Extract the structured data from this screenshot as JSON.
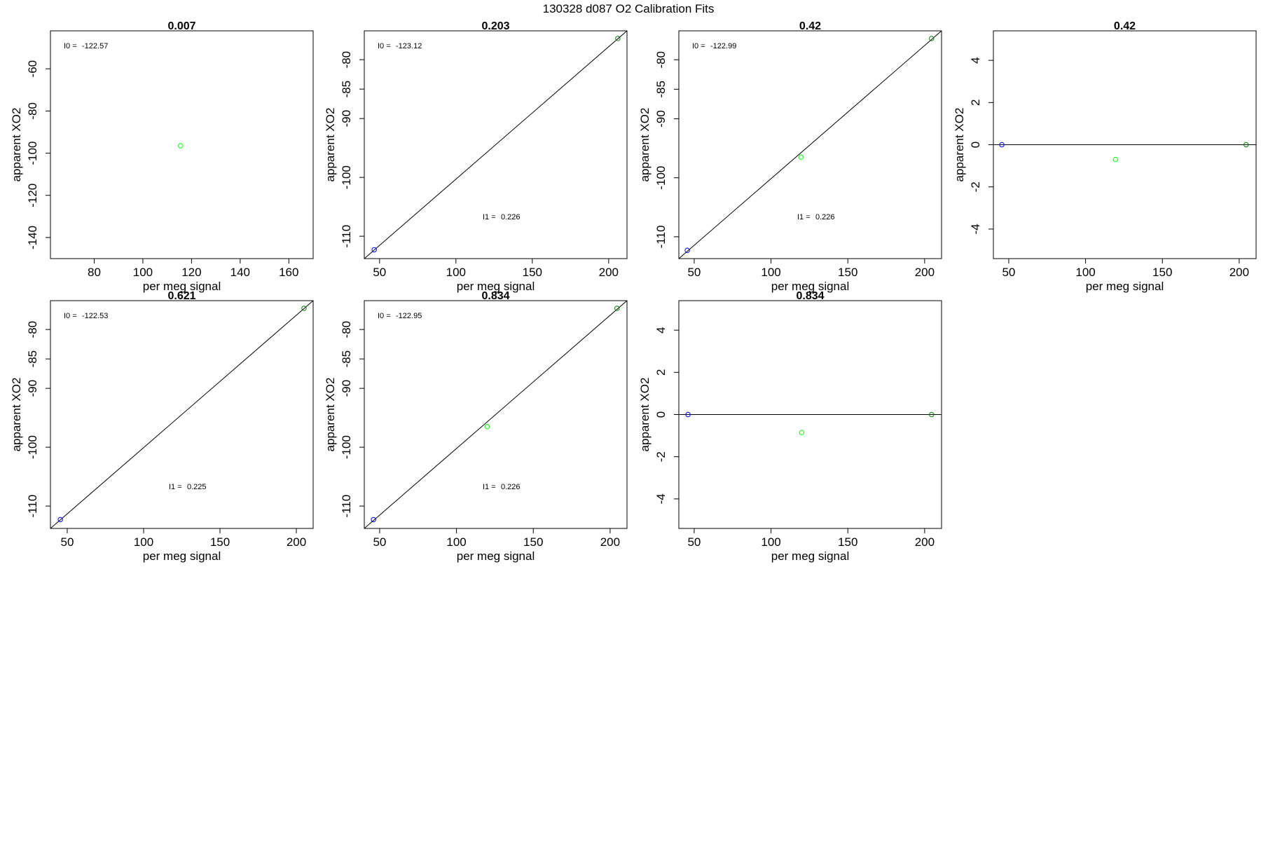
{
  "figure": {
    "title": "130328   d087   O2 Calibration Fits"
  },
  "colors": {
    "calibration_low": "#0000ff",
    "calibration_mid": "#00ff00",
    "calibration_high": "#008000",
    "fit_line": "#000000"
  },
  "chart_data": [
    {
      "type": "scatter",
      "title": "0.007",
      "xlabel": "per meg signal",
      "ylabel": "apparent XO2",
      "xlim": [
        62,
        170
      ],
      "ylim": [
        -150,
        -42
      ],
      "xticks": [
        80,
        100,
        120,
        140,
        160
      ],
      "yticks": [
        -140,
        -120,
        -100,
        -80,
        -60
      ],
      "fit_line": null,
      "annotations": [
        {
          "label": "I0 =",
          "value": "-122.57",
          "corner": "top-left"
        }
      ],
      "points": [
        {
          "x": 115.5,
          "y": -96.5,
          "color": "#00ff00"
        }
      ]
    },
    {
      "type": "scatter",
      "title": "0.203",
      "xlabel": "per meg signal",
      "ylabel": "apparent XO2",
      "xlim": [
        40,
        212
      ],
      "ylim": [
        -113.8,
        -75.1
      ],
      "xticks": [
        50,
        100,
        150,
        200
      ],
      "yticks": [
        -110,
        -100,
        -90,
        -85,
        -80
      ],
      "fit_line": {
        "from": [
          40,
          -113.8
        ],
        "to": [
          212,
          -75.1
        ]
      },
      "annotations": [
        {
          "label": "I0 =",
          "value": "-123.12",
          "corner": "top-left"
        },
        {
          "label": "I1 =",
          "value": "0.226",
          "corner": "lower-middle"
        }
      ],
      "points": [
        {
          "x": 46.5,
          "y": -112.3,
          "color": "#0000ff"
        },
        {
          "x": 206,
          "y": -76.4,
          "color": "#008000"
        }
      ]
    },
    {
      "type": "scatter",
      "title": "0.42",
      "xlabel": "per meg signal",
      "ylabel": "apparent XO2",
      "xlim": [
        40,
        211
      ],
      "ylim": [
        -113.7,
        -75.1
      ],
      "xticks": [
        50,
        100,
        150,
        200
      ],
      "yticks": [
        -110,
        -100,
        -90,
        -85,
        -80
      ],
      "fit_line": {
        "from": [
          40,
          -113.7
        ],
        "to": [
          211,
          -75.1
        ]
      },
      "annotations": [
        {
          "label": "I0 =",
          "value": "-122.99",
          "corner": "top-left"
        },
        {
          "label": "I1 =",
          "value": "0.226",
          "corner": "lower-middle"
        }
      ],
      "points": [
        {
          "x": 45.5,
          "y": -112.3,
          "color": "#0000ff"
        },
        {
          "x": 119.5,
          "y": -96.5,
          "color": "#00ff00"
        },
        {
          "x": 204.5,
          "y": -76.4,
          "color": "#008000"
        }
      ]
    },
    {
      "type": "scatter",
      "title": "0.42",
      "xlabel": "per meg signal",
      "ylabel": "apparent XO2",
      "xlim": [
        40,
        211
      ],
      "ylim": [
        -5.4,
        5.4
      ],
      "xticks": [
        50,
        100,
        150,
        200
      ],
      "yticks": [
        -4,
        -2,
        0,
        2,
        4
      ],
      "fit_line": {
        "from": [
          40,
          0
        ],
        "to": [
          211,
          0
        ]
      },
      "annotations": [],
      "points": [
        {
          "x": 45.5,
          "y": 0,
          "color": "#0000ff"
        },
        {
          "x": 119.5,
          "y": -0.7,
          "color": "#00ff00"
        },
        {
          "x": 204.5,
          "y": 0,
          "color": "#008000"
        }
      ]
    },
    {
      "type": "scatter",
      "title": "0.621",
      "xlabel": "per meg signal",
      "ylabel": "apparent XO2",
      "xlim": [
        39,
        211
      ],
      "ylim": [
        -113.8,
        -75.1
      ],
      "xticks": [
        50,
        100,
        150,
        200
      ],
      "yticks": [
        -110,
        -100,
        -90,
        -85,
        -80
      ],
      "fit_line": {
        "from": [
          39,
          -113.8
        ],
        "to": [
          211,
          -75.1
        ]
      },
      "annotations": [
        {
          "label": "I0 =",
          "value": "-122.53",
          "corner": "top-left"
        },
        {
          "label": "I1 =",
          "value": "0.225",
          "corner": "lower-middle"
        }
      ],
      "points": [
        {
          "x": 45.5,
          "y": -112.3,
          "color": "#0000ff"
        },
        {
          "x": 205,
          "y": -76.4,
          "color": "#008000"
        }
      ]
    },
    {
      "type": "scatter",
      "title": "0.834",
      "xlabel": "per meg signal",
      "ylabel": "apparent XO2",
      "xlim": [
        40,
        211
      ],
      "ylim": [
        -113.8,
        -75.1
      ],
      "xticks": [
        50,
        100,
        150,
        200
      ],
      "yticks": [
        -110,
        -100,
        -90,
        -85,
        -80
      ],
      "fit_line": {
        "from": [
          40,
          -113.8
        ],
        "to": [
          211,
          -75.1
        ]
      },
      "annotations": [
        {
          "label": "I0 =",
          "value": "-122.95",
          "corner": "top-left"
        },
        {
          "label": "I1 =",
          "value": "0.226",
          "corner": "lower-middle"
        }
      ],
      "points": [
        {
          "x": 46,
          "y": -112.3,
          "color": "#0000ff"
        },
        {
          "x": 120,
          "y": -96.5,
          "color": "#00ff00"
        },
        {
          "x": 204.5,
          "y": -76.4,
          "color": "#008000"
        }
      ]
    },
    {
      "type": "scatter",
      "title": "0.834",
      "xlabel": "per meg signal",
      "ylabel": "apparent XO2",
      "xlim": [
        40,
        211
      ],
      "ylim": [
        -5.4,
        5.4
      ],
      "xticks": [
        50,
        100,
        150,
        200
      ],
      "yticks": [
        -4,
        -2,
        0,
        2,
        4
      ],
      "fit_line": {
        "from": [
          40,
          0
        ],
        "to": [
          211,
          0
        ]
      },
      "annotations": [],
      "points": [
        {
          "x": 46,
          "y": 0,
          "color": "#0000ff"
        },
        {
          "x": 120,
          "y": -0.85,
          "color": "#00ff00"
        },
        {
          "x": 204.5,
          "y": 0,
          "color": "#008000"
        }
      ]
    }
  ]
}
